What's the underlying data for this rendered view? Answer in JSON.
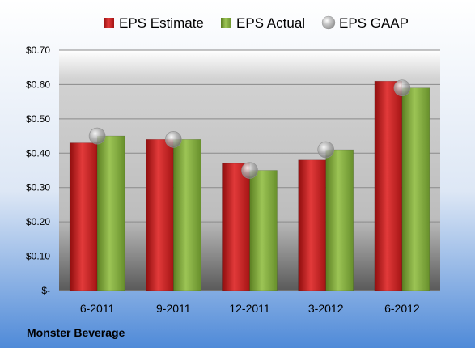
{
  "footer": {
    "company": "Monster Beverage"
  },
  "chart_data": {
    "type": "bar",
    "categories": [
      "6-2011",
      "9-2011",
      "12-2011",
      "3-2012",
      "6-2012"
    ],
    "series": [
      {
        "name": "EPS Estimate",
        "kind": "bar",
        "color": "#c81e1e",
        "values": [
          0.43,
          0.44,
          0.37,
          0.38,
          0.61
        ]
      },
      {
        "name": "EPS Actual",
        "kind": "bar",
        "color": "#7ea43c",
        "values": [
          0.45,
          0.44,
          0.35,
          0.41,
          0.59
        ]
      },
      {
        "name": "EPS GAAP",
        "kind": "marker",
        "color": "#a8a8a8",
        "values": [
          0.45,
          0.44,
          0.35,
          0.41,
          0.59
        ]
      }
    ],
    "yticks": [
      "$-",
      "$0.10",
      "$0.20",
      "$0.30",
      "$0.40",
      "$0.50",
      "$0.60",
      "$0.70"
    ],
    "ylim": [
      0,
      0.7
    ],
    "legend": "top",
    "grid": true
  }
}
